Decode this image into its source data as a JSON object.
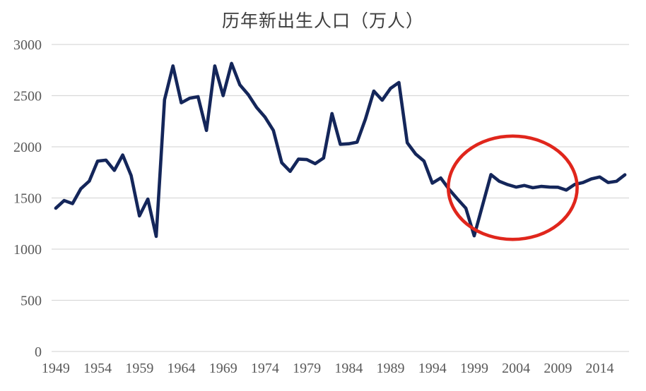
{
  "page": {
    "background_color": "#ffffff"
  },
  "chart_data": {
    "type": "line",
    "title": "历年新出生人口（万人）",
    "xlabel": "",
    "ylabel": "",
    "x": [
      1949,
      1950,
      1951,
      1952,
      1953,
      1954,
      1955,
      1956,
      1957,
      1958,
      1959,
      1960,
      1961,
      1962,
      1963,
      1964,
      1965,
      1966,
      1967,
      1968,
      1969,
      1970,
      1971,
      1972,
      1973,
      1974,
      1975,
      1976,
      1977,
      1978,
      1979,
      1980,
      1981,
      1982,
      1983,
      1984,
      1985,
      1986,
      1987,
      1988,
      1989,
      1990,
      1991,
      1992,
      1993,
      1994,
      1995,
      1996,
      1997,
      1998,
      1999,
      2000,
      2001,
      2002,
      2003,
      2004,
      2005,
      2006,
      2007,
      2008,
      2009,
      2010,
      2011,
      2012,
      2013,
      2014,
      2015,
      2016,
      2017
    ],
    "series": [
      {
        "name": "新出生人口",
        "values": [
          1400,
          1475,
          1445,
          1590,
          1665,
          1860,
          1870,
          1770,
          1920,
          1720,
          1325,
          1490,
          1125,
          2460,
          2790,
          2430,
          2475,
          2490,
          2160,
          2790,
          2500,
          2815,
          2605,
          2510,
          2385,
          2290,
          2160,
          1845,
          1760,
          1880,
          1875,
          1835,
          1890,
          2325,
          2025,
          2030,
          2045,
          2270,
          2545,
          2455,
          2570,
          2628,
          2040,
          1930,
          1860,
          1645,
          1695,
          1585,
          1490,
          1400,
          1130,
          1430,
          1728,
          1663,
          1630,
          1606,
          1622,
          1600,
          1613,
          1606,
          1605,
          1577,
          1632,
          1651,
          1686,
          1705,
          1651,
          1663,
          1726
        ]
      }
    ],
    "ylim": [
      0,
      3000
    ],
    "yticks": [
      0,
      500,
      1000,
      1500,
      2000,
      2500,
      3000
    ],
    "xticks": [
      1949,
      1954,
      1959,
      1964,
      1969,
      1974,
      1979,
      1984,
      1989,
      1994,
      1999,
      2004,
      2009,
      2014
    ],
    "grid": "horizontal",
    "legend_position": "none",
    "colors": {
      "line": "#14265a",
      "grid": "#d9d9d9",
      "ticks": "#595959",
      "title": "#3d3d3d",
      "annotation": "#e0261c"
    },
    "annotation": {
      "shape": "ellipse",
      "center_year": 2003.6,
      "center_value": 1600,
      "radius_years": 7.7,
      "radius_value": 505
    }
  }
}
